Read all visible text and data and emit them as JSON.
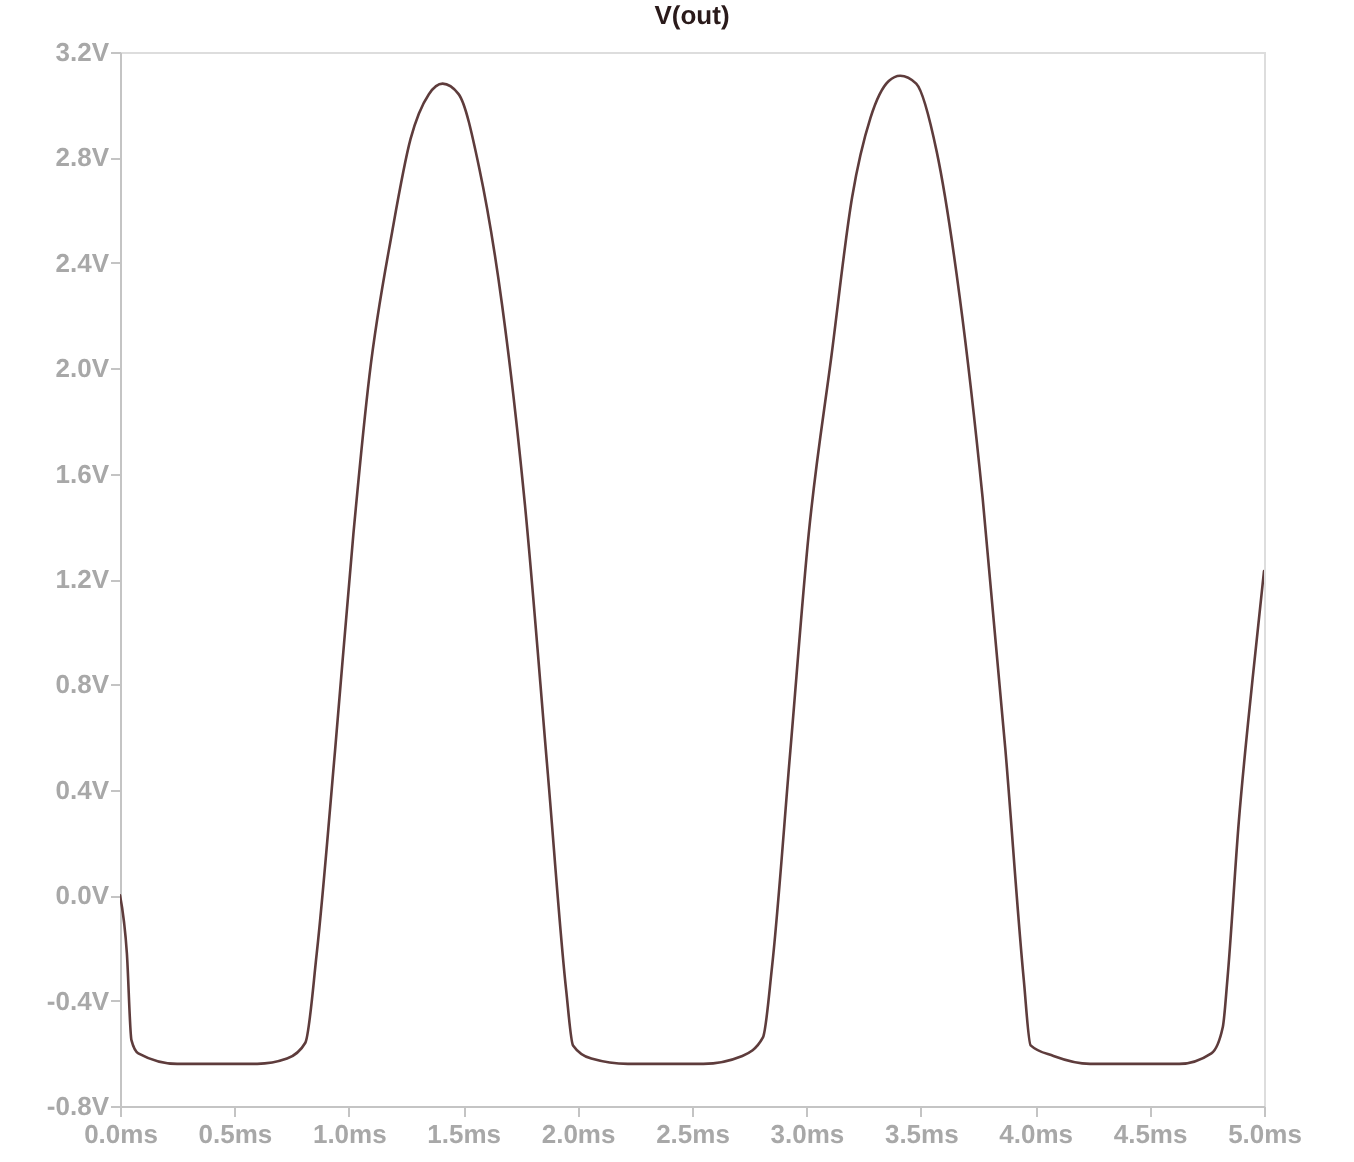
{
  "chart_data": {
    "type": "line",
    "title": "V(out)",
    "x": [
      0,
      0.03,
      0.05,
      0.08,
      0.25,
      0.6,
      0.73,
      0.81,
      0.86,
      0.94,
      1.02,
      1.09,
      1.19,
      1.27,
      1.35,
      1.41,
      1.48,
      1.57,
      1.67,
      1.77,
      1.87,
      1.95,
      1.98,
      2.06,
      2.22,
      2.55,
      2.72,
      2.81,
      2.85,
      2.93,
      3.01,
      3.11,
      3.2,
      3.28,
      3.36,
      3.41,
      3.48,
      3.57,
      3.67,
      3.77,
      3.87,
      3.95,
      3.98,
      4.08,
      4.24,
      4.63,
      4.77,
      4.82,
      4.84,
      4.89,
      4.95,
      5.0
    ],
    "series": [
      {
        "color": "#5e3c3c",
        "values": [
          0.0,
          -0.22,
          -0.55,
          -0.6,
          -0.64,
          -0.64,
          -0.62,
          -0.56,
          -0.22,
          0.55,
          1.37,
          1.97,
          2.52,
          2.87,
          3.04,
          3.08,
          3.04,
          2.76,
          2.24,
          1.48,
          0.46,
          -0.36,
          -0.57,
          -0.62,
          -0.64,
          -0.64,
          -0.61,
          -0.54,
          -0.27,
          0.55,
          1.37,
          2.05,
          2.65,
          2.95,
          3.09,
          3.11,
          3.08,
          2.82,
          2.27,
          1.51,
          0.55,
          -0.32,
          -0.57,
          -0.61,
          -0.64,
          -0.64,
          -0.6,
          -0.5,
          -0.32,
          0.28,
          0.82,
          1.23
        ]
      }
    ],
    "xlim": [
      0,
      5.0
    ],
    "xticks": [
      {
        "value": 0,
        "label": "0.0ms"
      },
      {
        "value": 0.5,
        "label": "0.5ms"
      },
      {
        "value": 1.0,
        "label": "1.0ms"
      },
      {
        "value": 1.5,
        "label": "1.5ms"
      },
      {
        "value": 2.0,
        "label": "2.0ms"
      },
      {
        "value": 2.5,
        "label": "2.5ms"
      },
      {
        "value": 3.0,
        "label": "3.0ms"
      },
      {
        "value": 3.5,
        "label": "3.5ms"
      },
      {
        "value": 4.0,
        "label": "4.0ms"
      },
      {
        "value": 4.5,
        "label": "4.5ms"
      },
      {
        "value": 5.0,
        "label": "5.0ms"
      }
    ],
    "ylim": [
      -0.8,
      3.2
    ],
    "yticks": [
      {
        "value": -0.8,
        "label": "-0.8V"
      },
      {
        "value": -0.4,
        "label": "-0.4V"
      },
      {
        "value": 0.0,
        "label": "0.0V"
      },
      {
        "value": 0.4,
        "label": "0.4V"
      },
      {
        "value": 0.8,
        "label": "0.8V"
      },
      {
        "value": 1.2,
        "label": "1.2V"
      },
      {
        "value": 1.6,
        "label": "1.6V"
      },
      {
        "value": 2.0,
        "label": "2.0V"
      },
      {
        "value": 2.4,
        "label": "2.4V"
      },
      {
        "value": 2.8,
        "label": "2.8V"
      },
      {
        "value": 3.2,
        "label": "3.2V"
      }
    ],
    "grid": false,
    "marker": "none",
    "line_style": "solid"
  }
}
